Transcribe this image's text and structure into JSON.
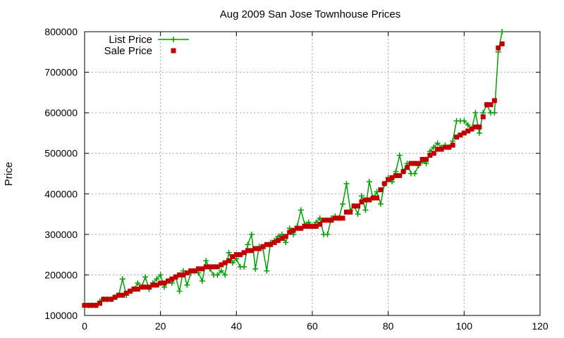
{
  "chart_data": {
    "type": "line",
    "title": "Aug 2009 San Jose Townhouse Prices",
    "xlabel": "",
    "ylabel": "Price",
    "xlim": [
      0,
      120
    ],
    "ylim": [
      100000,
      800000
    ],
    "x_ticks": [
      0,
      20,
      40,
      60,
      80,
      100,
      120
    ],
    "y_ticks": [
      100000,
      200000,
      300000,
      400000,
      500000,
      600000,
      700000,
      800000
    ],
    "grid": true,
    "legend_position": "top-left",
    "series": [
      {
        "name": "List Price",
        "style": "line-with-plus-markers",
        "color": "#00a000",
        "values": [
          125000,
          125000,
          125000,
          125000,
          135000,
          140000,
          140000,
          140000,
          145000,
          150000,
          190000,
          150000,
          160000,
          165000,
          180000,
          170000,
          195000,
          165000,
          180000,
          190000,
          200000,
          170000,
          185000,
          180000,
          195000,
          160000,
          210000,
          175000,
          205000,
          210000,
          205000,
          185000,
          235000,
          215000,
          200000,
          200000,
          210000,
          200000,
          255000,
          230000,
          240000,
          220000,
          220000,
          275000,
          300000,
          215000,
          270000,
          265000,
          210000,
          280000,
          285000,
          295000,
          300000,
          280000,
          315000,
          300000,
          320000,
          360000,
          325000,
          330000,
          320000,
          330000,
          340000,
          300000,
          300000,
          340000,
          345000,
          340000,
          375000,
          425000,
          360000,
          370000,
          350000,
          395000,
          360000,
          430000,
          390000,
          405000,
          375000,
          425000,
          440000,
          430000,
          455000,
          495000,
          455000,
          475000,
          450000,
          450000,
          470000,
          480000,
          475000,
          505000,
          515000,
          525000,
          515000,
          520000,
          515000,
          530000,
          580000,
          580000,
          580000,
          570000,
          560000,
          600000,
          550000,
          600000,
          620000,
          600000,
          600000,
          750000,
          800000
        ],
        "x": [
          0,
          1,
          2,
          3,
          4,
          5,
          6,
          7,
          8,
          9,
          10,
          11,
          12,
          13,
          14,
          15,
          16,
          17,
          18,
          19,
          20,
          21,
          22,
          23,
          24,
          25,
          26,
          27,
          28,
          29,
          30,
          31,
          32,
          33,
          34,
          35,
          36,
          37,
          38,
          39,
          40,
          41,
          42,
          43,
          44,
          45,
          46,
          47,
          48,
          49,
          50,
          51,
          52,
          53,
          54,
          55,
          56,
          57,
          58,
          59,
          60,
          61,
          62,
          63,
          64,
          65,
          66,
          67,
          68,
          69,
          70,
          71,
          72,
          73,
          74,
          75,
          76,
          77,
          78,
          79,
          80,
          81,
          82,
          83,
          84,
          85,
          86,
          87,
          88,
          89,
          90,
          91,
          92,
          93,
          94,
          95,
          96,
          97,
          98,
          99,
          100,
          101,
          102,
          103,
          104,
          105,
          106,
          107,
          108,
          109,
          110
        ]
      },
      {
        "name": "Sale Price",
        "style": "square-markers",
        "color": "#c00000",
        "values": [
          125000,
          125000,
          125000,
          125000,
          130000,
          140000,
          140000,
          140000,
          145000,
          150000,
          150000,
          155000,
          160000,
          165000,
          165000,
          170000,
          170000,
          170000,
          175000,
          175000,
          180000,
          180000,
          185000,
          190000,
          195000,
          200000,
          200000,
          205000,
          210000,
          210000,
          215000,
          215000,
          220000,
          220000,
          220000,
          220000,
          225000,
          230000,
          235000,
          245000,
          250000,
          250000,
          255000,
          260000,
          260000,
          265000,
          265000,
          270000,
          275000,
          275000,
          280000,
          285000,
          290000,
          295000,
          305000,
          310000,
          315000,
          315000,
          320000,
          320000,
          320000,
          320000,
          325000,
          335000,
          335000,
          335000,
          340000,
          340000,
          340000,
          355000,
          355000,
          370000,
          370000,
          380000,
          385000,
          385000,
          390000,
          390000,
          410000,
          425000,
          435000,
          440000,
          445000,
          445000,
          455000,
          465000,
          475000,
          475000,
          475000,
          485000,
          485000,
          495000,
          500000,
          510000,
          510000,
          515000,
          515000,
          520000,
          540000,
          545000,
          550000,
          555000,
          560000,
          565000,
          565000,
          590000,
          620000,
          620000,
          630000,
          760000,
          770000
        ],
        "x": [
          0,
          1,
          2,
          3,
          4,
          5,
          6,
          7,
          8,
          9,
          10,
          11,
          12,
          13,
          14,
          15,
          16,
          17,
          18,
          19,
          20,
          21,
          22,
          23,
          24,
          25,
          26,
          27,
          28,
          29,
          30,
          31,
          32,
          33,
          34,
          35,
          36,
          37,
          38,
          39,
          40,
          41,
          42,
          43,
          44,
          45,
          46,
          47,
          48,
          49,
          50,
          51,
          52,
          53,
          54,
          55,
          56,
          57,
          58,
          59,
          60,
          61,
          62,
          63,
          64,
          65,
          66,
          67,
          68,
          69,
          70,
          71,
          72,
          73,
          74,
          75,
          76,
          77,
          78,
          79,
          80,
          81,
          82,
          83,
          84,
          85,
          86,
          87,
          88,
          89,
          90,
          91,
          92,
          93,
          94,
          95,
          96,
          97,
          98,
          99,
          100,
          101,
          102,
          103,
          104,
          105,
          106,
          107,
          108,
          109,
          110
        ]
      }
    ]
  }
}
